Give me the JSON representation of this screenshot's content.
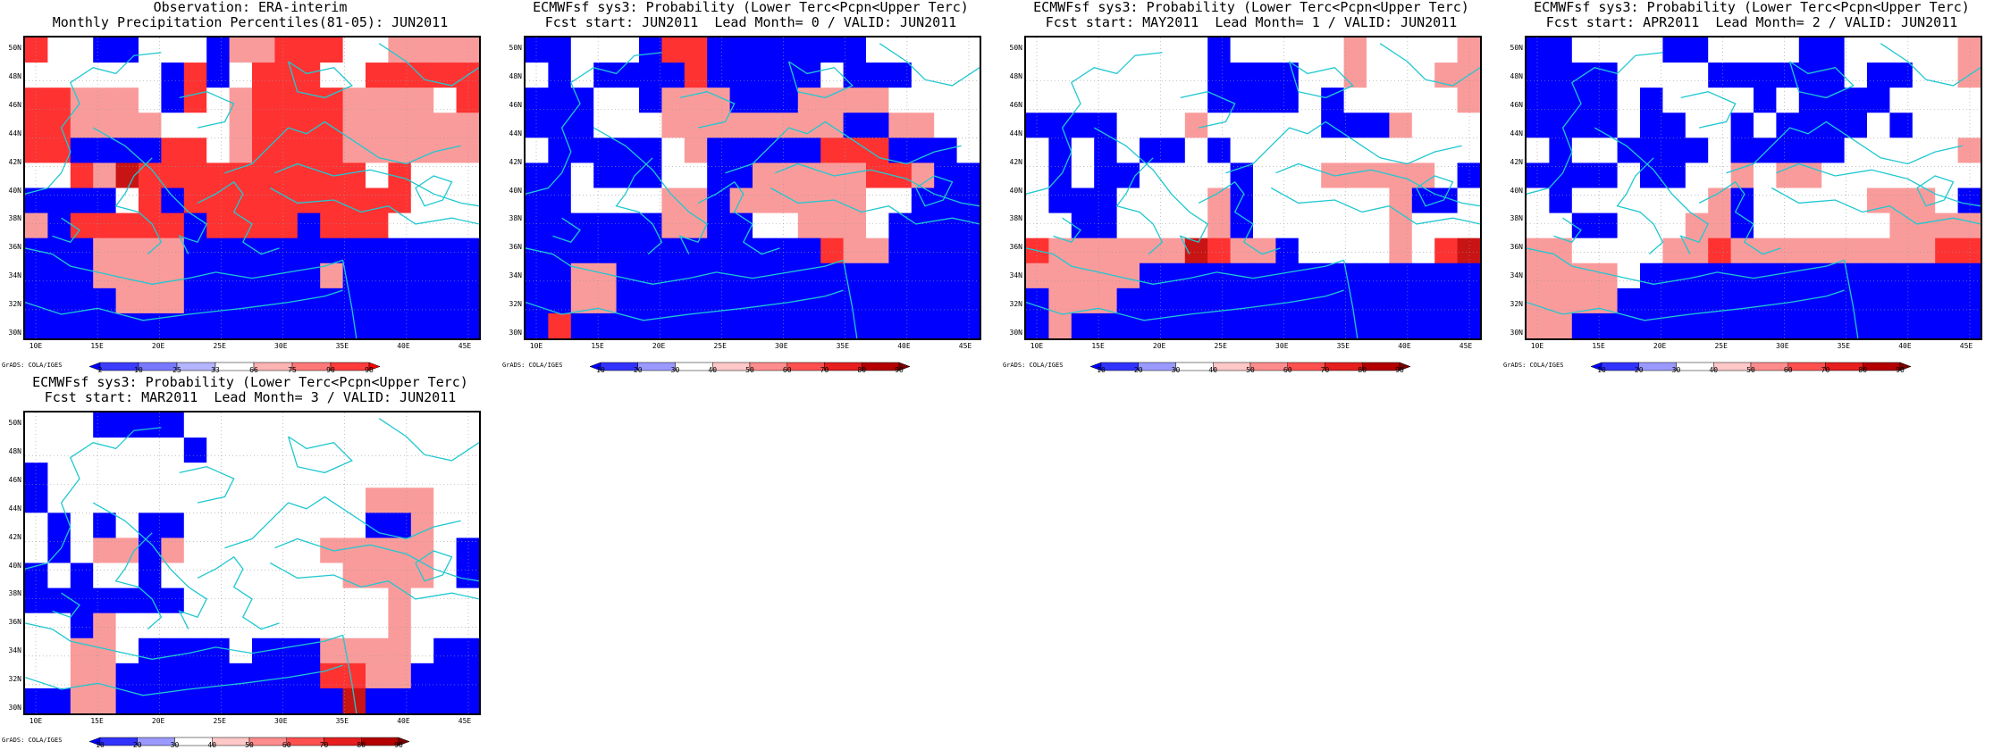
{
  "panels": [
    {
      "title_line1": "Observation: ERA-interim",
      "title_line2": "Monthly Precipitation Percentiles(81-05): JUN2011",
      "kind": "obs",
      "credit": "GrADS: COLA/IGES",
      "grid": [
        "R00BBW00BLLRRRW0LLLL",
        "W0W0WWBRBWRRRWWRRRRR",
        "RRLLLWBRWLRRRRLLLLWR",
        "RRLLLLWWWLRRRRLLLLLL",
        "RRBBBBRRWLRRRRLLLLLL",
        "WWRLSRRRRRRRRRRWRWWW",
        "BBBBWRBRRRRRRRRRRWWW",
        "LBRRRRRBRRRRBRRRWWWW",
        "BBBLLLLBBBBBBBBBBBBB",
        "BBBLLLLBBBBBBLBBBBBB",
        "BBBBLLLBBBBBBBBBBBBB",
        "BBBBBBBBBBBBBBBBBBBB"
      ],
      "colorbar_labels": [
        "2",
        "10",
        "25",
        "33",
        "66",
        "75",
        "90",
        "98"
      ]
    },
    {
      "title_line1": "ECMWFsf sys3: Probability (Lower Terc<Pcpn<Upper Terc)",
      "title_line2": "Fcst start: JUN2011  Lead Month= 0 / VALID: JUN2011",
      "kind": "prob",
      "credit": "GrADS: COLA/IGES",
      "grid": [
        "BBWWWBRRBBBBBBBWWWWW",
        "WBWBBBBRBBBBBWBBBWWW",
        "BBBWWBLLLBBBLLLLWWWW",
        "BBBWWWLLLLLLLLBBLLWW",
        "WBBBBBWLBBBBBRRRBBBW",
        "BBWBBBWWBBLLLLLRRLBB",
        "BBWWWWLLBLLLLLLWWBBB",
        "BBBBBBLLBBWWLLLWBBBB",
        "BBBBBBBBBBBBBRLLBBBB",
        "BBLLBBBBBBBBBBBBBBBB",
        "BBLLBBBBBBBBBBBBBBBB",
        "BRBBBBBBBBBBBBBBBBBB"
      ],
      "colorbar_labels": [
        "10",
        "20",
        "30",
        "40",
        "50",
        "60",
        "70",
        "80",
        "90"
      ]
    },
    {
      "title_line1": "ECMWFsf sys3: Probability (Lower Terc<Pcpn<Upper Terc)",
      "title_line2": "Fcst start: MAY2011  Lead Month= 1 / VALID: JUN2011",
      "kind": "prob",
      "credit": "GrADS: COLA/IGES",
      "grid": [
        "WWWWWWWWBWWWWWLWWWWL",
        "WWWWWWWWBBBBWWLWWWLL",
        "WWWWWWWWBBBBWBWWWWWL",
        "BBBBWWWLWWWWWBBBLWWW",
        "WBWBWBBWBWWWWWWWWWWW",
        "WBWBBWWWWBWWWLLLLLWB",
        "WBBBWWWWLBWWWWWWLBBW",
        "WWBBWWWWLBWWWWWWLWWW",
        "RLLLLLLSRLLBWWWWLWRS",
        "LLLLLBBBBBBBBBBBBBBB",
        "BLLLBBBBBBBBBBBBBBBB",
        "BLBBBBBBBBBBBBBBBBBB"
      ],
      "colorbar_labels": [
        "10",
        "20",
        "30",
        "40",
        "50",
        "60",
        "70",
        "80",
        "90"
      ]
    },
    {
      "title_line1": "ECMWFsf sys3: Probability (Lower Terc<Pcpn<Upper Terc)",
      "title_line2": "Fcst start: APR2011  Lead Month= 2 / VALID: JUN2011",
      "kind": "prob",
      "credit": "GrADS: COLA/IGES",
      "grid": [
        "BBWWWWBBWWWWBBWWWWWL",
        "BBBBWWWWBBBBBBWBBWWL",
        "BBBBWBWWWWBWBBBBWWWW",
        "BBBBWBBWWBWBBBBWBWWW",
        "WBWWBBBBWBBBBBWWWWWL",
        "BBBBWBBWWLWLLWWWWWWW",
        "WBWWWWWWLBWWWWWLLLWB",
        "WWBBWWWLLBWWWWWWLLLL",
        "LLWWWWLLRLLLLLLLLLRR",
        "LLLLWBBBBBBBBBBBBBBB",
        "LLLLBBBBBBBBBBBBBBBB",
        "LLBBBBBBBBBBBBBBBBBB"
      ],
      "colorbar_labels": [
        "10",
        "20",
        "30",
        "40",
        "50",
        "60",
        "70",
        "80",
        "90"
      ]
    },
    {
      "title_line1": "ECMWFsf sys3: Probability (Lower Terc<Pcpn<Upper Terc)",
      "title_line2": "Fcst start: MAR2011  Lead Month= 3 / VALID: JUN2011",
      "kind": "prob",
      "credit": "GrADS: COLA/IGES",
      "grid": [
        "WWWBBBBWWWWWWWWWWWWW",
        "WWWWWWWBWWWWWWWWWWWW",
        "BWWWWWWWWWWWWWWWWWWW",
        "BWWWWWWWWWWWWWWLLLWW",
        "WBWBWBBWWWWWWWWBBLWW",
        "WBWLLBLWWWWWWLLLLLWB",
        "BWBWWBWWWWWWWWLLLLWB",
        "BBBBBBBWWWWWWWWWLWWW",
        "WWBLWWWWWWWWWWWWLWWW",
        "WWLLWBBBBWBBBLLLLWBB",
        "WWLLBBBBBBBBBRRLLBBB",
        "BBLLBBBBBBBBBBSBBBBB"
      ],
      "colorbar_labels": [
        "10",
        "20",
        "30",
        "40",
        "50",
        "60",
        "70",
        "80",
        "90"
      ]
    }
  ],
  "y_ticks": [
    "50N",
    "48N",
    "46N",
    "44N",
    "42N",
    "40N",
    "38N",
    "36N",
    "34N",
    "32N",
    "30N"
  ],
  "x_ticks": [
    "10E",
    "15E",
    "20E",
    "25E",
    "30E",
    "35E",
    "40E",
    "45E"
  ],
  "colors": {
    "B": "#0000ff",
    "L": "#fa9b9b",
    "R": "#ff3232",
    "S": "#c81414",
    "W": "#ffffff",
    "coast": "#20c8d0",
    "obs_scale": [
      "#0000ff",
      "#3c3cff",
      "#7878ff",
      "#b4b4ff",
      "#ffffff",
      "#ffb4b4",
      "#ff7878",
      "#ff3c3c",
      "#ff0000"
    ],
    "prob_scale": [
      "#0000ff",
      "#3333ff",
      "#9999ff",
      "#ffffff",
      "#ffc8c8",
      "#ff8c8c",
      "#ff5050",
      "#e61e1e",
      "#b40000",
      "#780000"
    ]
  }
}
